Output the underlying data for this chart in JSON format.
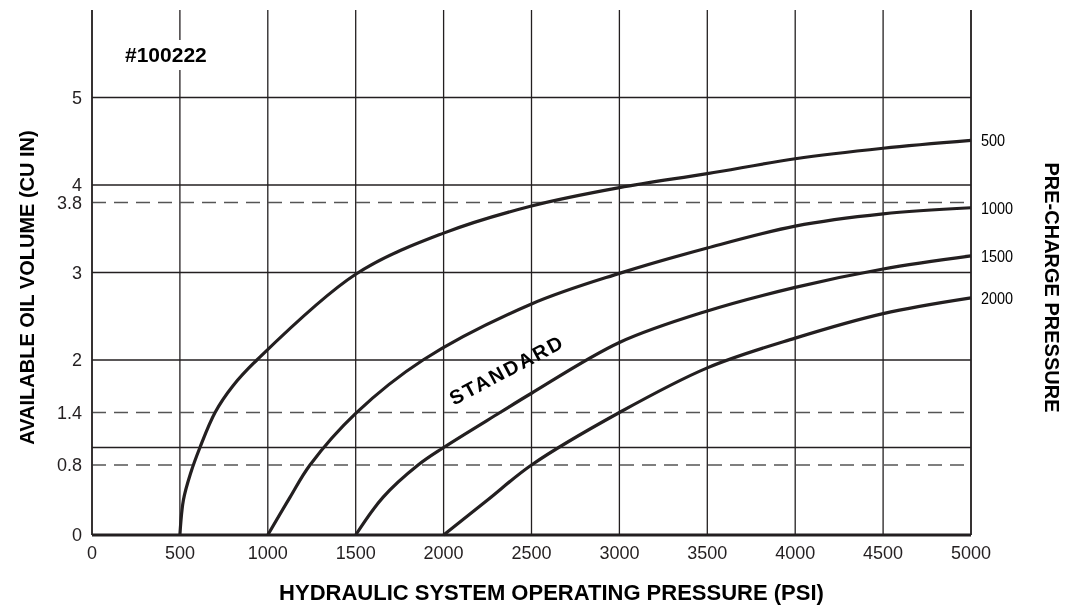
{
  "chart_data": {
    "type": "line",
    "title": "#100222",
    "xlabel": "HYDRAULIC SYSTEM OPERATING PRESSURE (PSI)",
    "ylabel": "AVAILABLE OIL VOLUME (CU IN)",
    "y2label": "PRE-CHARGE PRESSURE",
    "xlim": [
      0,
      5000
    ],
    "xticks": [
      0,
      500,
      1000,
      1500,
      2000,
      2500,
      3000,
      3500,
      4000,
      4500,
      5000
    ],
    "ylim": [
      0,
      6
    ],
    "yticks": [
      0,
      {
        "value": 1,
        "label": null
      },
      2,
      3,
      4,
      5
    ],
    "grid": true,
    "legend": false,
    "marker": "none",
    "line_style": "solid",
    "series": [
      {
        "name": "500",
        "color": "#231f20",
        "x": [
          500,
          520,
          560,
          614,
          700,
          800,
          938,
          1500,
          2000,
          2500,
          3000,
          3500,
          4000,
          4500,
          5000
        ],
        "values": [
          0,
          0.4,
          0.7,
          1.0,
          1.4,
          1.7,
          2.0,
          2.98,
          3.45,
          3.76,
          3.97,
          4.13,
          4.3,
          4.42,
          4.51
        ]
      },
      {
        "name": "1000",
        "color": "#231f20",
        "x": [
          1000,
          1126,
          1240,
          1500,
          1883,
          2500,
          3000,
          3500,
          4000,
          4500,
          5000
        ],
        "values": [
          0,
          0.43,
          0.8,
          1.39,
          2.0,
          2.64,
          2.99,
          3.28,
          3.53,
          3.67,
          3.74
        ]
      },
      {
        "name": "1500",
        "color": "#231f20",
        "x": [
          1500,
          1655,
          1855,
          2000,
          2321,
          2500,
          3000,
          3500,
          4000,
          4500,
          5000
        ],
        "values": [
          0,
          0.43,
          0.8,
          1.0,
          1.4,
          1.62,
          2.2,
          2.56,
          2.83,
          3.04,
          3.19
        ]
      },
      {
        "name": "2000",
        "color": "#231f20",
        "x": [
          2000,
          2250,
          2500,
          3000,
          3500,
          4000,
          4500,
          5000
        ],
        "values": [
          0,
          0.4,
          0.8,
          1.4,
          1.91,
          2.25,
          2.53,
          2.71
        ]
      }
    ],
    "ref_lines": [
      {
        "axis": "y",
        "value": 3.8,
        "label": "3.8",
        "line_style": "dashed",
        "color": "#555555"
      },
      {
        "axis": "y",
        "value": 1.4,
        "label": "1.4",
        "line_style": "dashed",
        "color": "#555555"
      },
      {
        "axis": "y",
        "value": 0.8,
        "label": "0.8",
        "line_style": "dashed",
        "color": "#555555"
      }
    ],
    "annotations": [
      "STANDARD"
    ]
  }
}
